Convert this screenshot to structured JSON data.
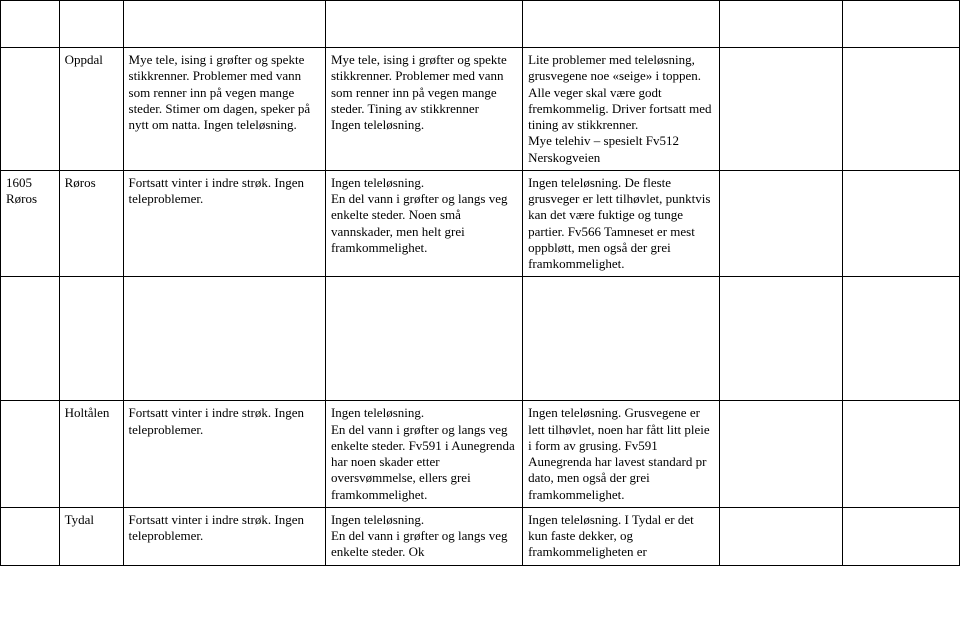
{
  "rows": [
    {
      "c0": "",
      "c1": "",
      "c2": "",
      "c3": "",
      "c4": "",
      "c5": "",
      "c6": ""
    },
    {
      "c0": "",
      "c1": "Oppdal",
      "c2": "Mye tele, ising i grøfter og spekte stikkrenner. Problemer med vann som renner inn på vegen mange steder. Stimer om dagen, speker på nytt om natta. Ingen teleløsning.",
      "c3": "Mye tele, ising i grøfter og spekte stikkrenner. Problemer med vann som renner inn på vegen mange steder. Tining av stikkrenner\n Ingen teleløsning.",
      "c4": "Lite problemer med teleløsning, grusvegene noe «seige» i toppen. Alle veger skal være godt fremkommelig. Driver fortsatt med tining av stikkrenner.\nMye telehiv – spesielt Fv512 Nerskogveien",
      "c5": "",
      "c6": ""
    },
    {
      "c0": "1605 Røros",
      "c1": "Røros",
      "c2": "Fortsatt vinter i indre strøk. Ingen teleproblemer.",
      "c3": "Ingen teleløsning.\nEn del vann i grøfter og langs veg enkelte steder. Noen små vannskader, men helt grei framkommelighet.",
      "c4": "Ingen teleløsning. De fleste grusveger er lett tilhøvlet, punktvis kan det være fuktige og tunge partier. Fv566 Tamneset er mest oppbløtt, men også der grei framkommelighet.",
      "c5": "",
      "c6": ""
    },
    {
      "c0": "",
      "c1": "Holtålen",
      "c2": "Fortsatt vinter i indre strøk. Ingen teleproblemer.",
      "c3": "Ingen teleløsning.\nEn del vann i grøfter og langs veg enkelte steder. Fv591 i Aunegrenda har noen skader etter oversvømmelse, ellers grei framkommelighet.",
      "c4": "Ingen teleløsning. Grusvegene er lett tilhøvlet, noen har fått litt pleie i form av grusing. Fv591 Aunegrenda  har lavest standard pr dato, men også der grei framkommelighet.",
      "c5": "",
      "c6": ""
    },
    {
      "c0": "",
      "c1": "Tydal",
      "c2": "Fortsatt vinter i indre strøk. Ingen teleproblemer.",
      "c3": "Ingen teleløsning.\nEn del vann i grøfter og langs veg enkelte steder. Ok",
      "c4": "Ingen teleløsning. I Tydal er det kun faste dekker, og framkommeligheten er",
      "c5": "",
      "c6": ""
    }
  ]
}
